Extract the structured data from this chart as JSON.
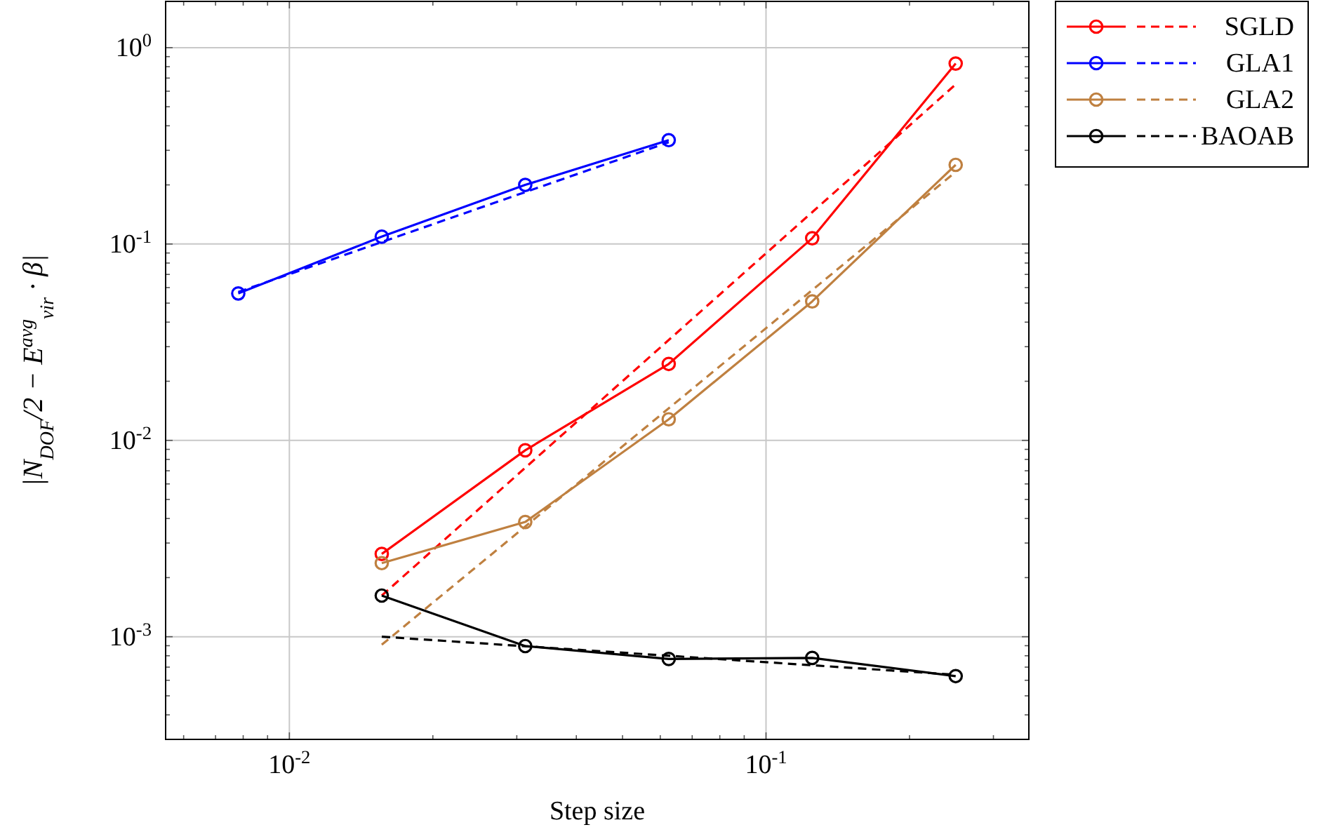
{
  "chart_data": {
    "type": "line",
    "xlabel": "Step size",
    "ylabel": "|N$_{DOF}$/2 − E$^{avg}$$_{vir}$ · β|",
    "log": "xy",
    "grid": true,
    "legend": "top right",
    "marker": "circle",
    "xlim": [
      0.0055,
      0.356
    ],
    "ylim": [
      0.0003,
      1.72
    ],
    "xticks": [
      {
        "value": 0.006,
        "label": null
      },
      {
        "value": 0.007,
        "label": null
      },
      {
        "value": 0.008,
        "label": null
      },
      {
        "value": 0.009,
        "label": null
      },
      {
        "value": 0.01,
        "label": "10$^{-2}$"
      },
      {
        "value": 0.02,
        "label": null
      },
      {
        "value": 0.03,
        "label": null
      },
      {
        "value": 0.04,
        "label": null
      },
      {
        "value": 0.05,
        "label": null
      },
      {
        "value": 0.06,
        "label": null
      },
      {
        "value": 0.07,
        "label": null
      },
      {
        "value": 0.08,
        "label": null
      },
      {
        "value": 0.09,
        "label": null
      },
      {
        "value": 0.1,
        "label": "10$^{-1}$"
      },
      {
        "value": 0.2,
        "label": null
      },
      {
        "value": 0.3,
        "label": null
      }
    ],
    "yticks": [
      {
        "value": 0.0004,
        "label": null
      },
      {
        "value": 0.0005,
        "label": null
      },
      {
        "value": 0.0006,
        "label": null
      },
      {
        "value": 0.0007,
        "label": null
      },
      {
        "value": 0.0008,
        "label": null
      },
      {
        "value": 0.0009,
        "label": null
      },
      {
        "value": 0.001,
        "label": "10$^{-3}$"
      },
      {
        "value": 0.002,
        "label": null
      },
      {
        "value": 0.003,
        "label": null
      },
      {
        "value": 0.004,
        "label": null
      },
      {
        "value": 0.005,
        "label": null
      },
      {
        "value": 0.006,
        "label": null
      },
      {
        "value": 0.007,
        "label": null
      },
      {
        "value": 0.008,
        "label": null
      },
      {
        "value": 0.009,
        "label": null
      },
      {
        "value": 0.01,
        "label": "10$^{-2}$"
      },
      {
        "value": 0.02,
        "label": null
      },
      {
        "value": 0.03,
        "label": null
      },
      {
        "value": 0.04,
        "label": null
      },
      {
        "value": 0.05,
        "label": null
      },
      {
        "value": 0.06,
        "label": null
      },
      {
        "value": 0.07,
        "label": null
      },
      {
        "value": 0.08,
        "label": null
      },
      {
        "value": 0.09,
        "label": null
      },
      {
        "value": 0.1,
        "label": "10$^{-1}$"
      },
      {
        "value": 0.2,
        "label": null
      },
      {
        "value": 0.3,
        "label": null
      },
      {
        "value": 0.4,
        "label": null
      },
      {
        "value": 0.5,
        "label": null
      },
      {
        "value": 0.6,
        "label": null
      },
      {
        "value": 0.7,
        "label": null
      },
      {
        "value": 0.8,
        "label": null
      },
      {
        "value": 0.9,
        "label": null
      },
      {
        "value": 1,
        "label": "10$^{0}$"
      }
    ],
    "series": [
      {
        "name": "SGLD",
        "color": "#ff0000",
        "x": [
          0.015625,
          0.03125,
          0.0625,
          0.125,
          0.25
        ],
        "values": [
          0.00264,
          0.0089,
          0.0245,
          0.107,
          0.83
        ]
      },
      {
        "color": "#ff0000",
        "line_style": "dashed",
        "marker": "none",
        "x": [
          0.015625,
          0.25
        ],
        "values": [
          0.00162,
          0.65
        ]
      },
      {
        "name": "GLA1",
        "color": "#0000ff",
        "x": [
          0.0078125,
          0.015625,
          0.03125,
          0.0625
        ],
        "values": [
          0.056,
          0.109,
          0.2,
          0.338
        ]
      },
      {
        "color": "#0000ff",
        "line_style": "dashed",
        "marker": "none",
        "x": [
          0.0078125,
          0.0625
        ],
        "values": [
          0.057,
          0.33
        ]
      },
      {
        "name": "GLA2",
        "color": "#bf8040",
        "x": [
          0.015625,
          0.03125,
          0.0625,
          0.125,
          0.25
        ],
        "values": [
          0.00237,
          0.00384,
          0.0128,
          0.051,
          0.253
        ]
      },
      {
        "color": "#bf8040",
        "line_style": "dashed",
        "marker": "none",
        "x": [
          0.015625,
          0.25
        ],
        "values": [
          0.00091,
          0.233
        ]
      },
      {
        "name": "BAOAB",
        "color": "#000000",
        "x": [
          0.015625,
          0.03125,
          0.0625,
          0.125,
          0.25
        ],
        "values": [
          0.00162,
          0.000896,
          0.00077,
          0.00078,
          0.00063
        ]
      },
      {
        "color": "#000000",
        "line_style": "dashed",
        "marker": "none",
        "x": [
          0.015625,
          0.25
        ],
        "values": [
          0.001,
          0.00064
        ]
      }
    ]
  }
}
